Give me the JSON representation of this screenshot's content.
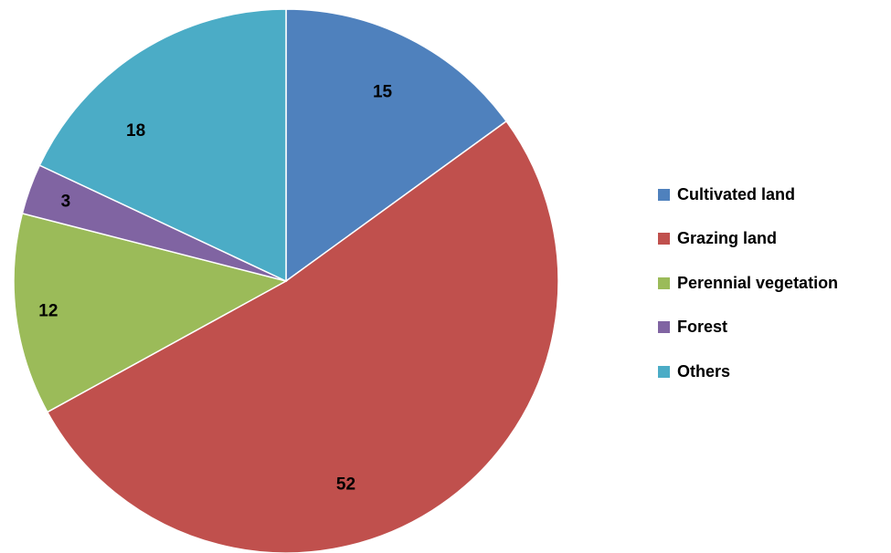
{
  "chart_data": {
    "type": "pie",
    "title": "",
    "categories": [
      "Cultivated land",
      "Grazing land",
      "Perennial vegetation",
      "Forest",
      "Others"
    ],
    "values": [
      15,
      52,
      12,
      3,
      18
    ],
    "data_labels": [
      "15",
      "52",
      "12",
      "3",
      "18"
    ],
    "colors": [
      "#4F81BD",
      "#C0504D",
      "#9BBB59",
      "#8064A2",
      "#4BACC6"
    ],
    "start_angle_deg": 0,
    "direction": "clockwise",
    "legend_placement": "right"
  }
}
